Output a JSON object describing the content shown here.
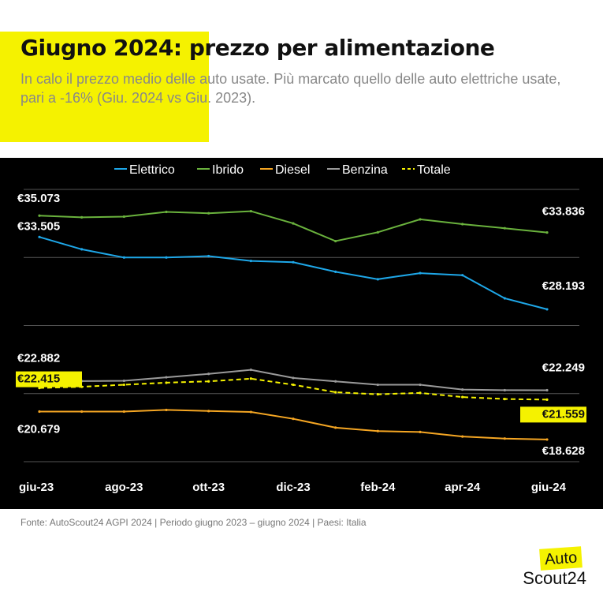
{
  "header": {
    "title": "Giugno 2024: prezzo per alimentazione",
    "subtitle": "In calo il prezzo medio delle auto usate. Più marcato quello delle auto elettriche usate, pari a -16% (Giu. 2024 vs Giu. 2023)."
  },
  "footer": {
    "source": "Fonte: AutoScout24 AGPI 2024 | Periodo giugno 2023 – giugno 2024 | Paesi: Italia"
  },
  "logo": {
    "line1": "Auto",
    "line2": "Scout24"
  },
  "colors": {
    "Elettrico": "#1ea7e8",
    "Ibrido": "#6ab23d",
    "Diesel": "#f5a623",
    "Benzina": "#9a9a9a",
    "Totale": "#f5f200",
    "accent": "#f5f200"
  },
  "chart_data": {
    "type": "line",
    "title": "",
    "xlabel": "",
    "ylabel": "",
    "x": [
      "giu-23",
      "lug-23",
      "ago-23",
      "set-23",
      "ott-23",
      "nov-23",
      "dic-23",
      "gen-24",
      "feb-24",
      "mar-24",
      "apr-24",
      "mag-24",
      "giu-24"
    ],
    "x_tick_labels": [
      "giu-23",
      "ago-23",
      "ott-23",
      "dic-23",
      "feb-24",
      "apr-24",
      "giu-24"
    ],
    "ylim": [
      17000,
      37000
    ],
    "grid": true,
    "legend": "top",
    "series": [
      {
        "name": "Elettrico",
        "style": "solid",
        "values": [
          33505,
          32600,
          32000,
          32000,
          32100,
          31750,
          31650,
          30950,
          30400,
          30850,
          30700,
          29000,
          28193
        ]
      },
      {
        "name": "Ibrido",
        "style": "solid",
        "values": [
          35073,
          34950,
          35000,
          35350,
          35250,
          35400,
          34500,
          33200,
          33850,
          34800,
          34450,
          34150,
          33836
        ]
      },
      {
        "name": "Diesel",
        "style": "solid",
        "values": [
          20679,
          20680,
          20680,
          20800,
          20720,
          20650,
          20150,
          19500,
          19250,
          19180,
          18850,
          18700,
          18628
        ]
      },
      {
        "name": "Benzina",
        "style": "solid",
        "values": [
          22882,
          22920,
          22940,
          23200,
          23450,
          23750,
          23150,
          22900,
          22650,
          22650,
          22300,
          22250,
          22249
        ]
      },
      {
        "name": "Totale",
        "style": "dashed",
        "values": [
          22415,
          22500,
          22650,
          22800,
          22900,
          23100,
          22650,
          22100,
          21950,
          22050,
          21750,
          21600,
          21559
        ]
      }
    ],
    "annotations": [
      {
        "series": "Ibrido",
        "point": "giu-23",
        "text": "€35.073"
      },
      {
        "series": "Elettrico",
        "point": "giu-23",
        "text": "€33.505"
      },
      {
        "series": "Benzina",
        "point": "giu-23",
        "text": "€22.882"
      },
      {
        "series": "Totale",
        "point": "giu-23",
        "text": "€22.415"
      },
      {
        "series": "Diesel",
        "point": "giu-23",
        "text": "€20.679"
      },
      {
        "series": "Ibrido",
        "point": "giu-24",
        "text": "€33.836"
      },
      {
        "series": "Elettrico",
        "point": "giu-24",
        "text": "€28.193"
      },
      {
        "series": "Benzina",
        "point": "giu-24",
        "text": "€22.249"
      },
      {
        "series": "Totale",
        "point": "giu-24",
        "text": "€21.559"
      },
      {
        "series": "Diesel",
        "point": "giu-24",
        "text": "€18.628"
      }
    ]
  }
}
